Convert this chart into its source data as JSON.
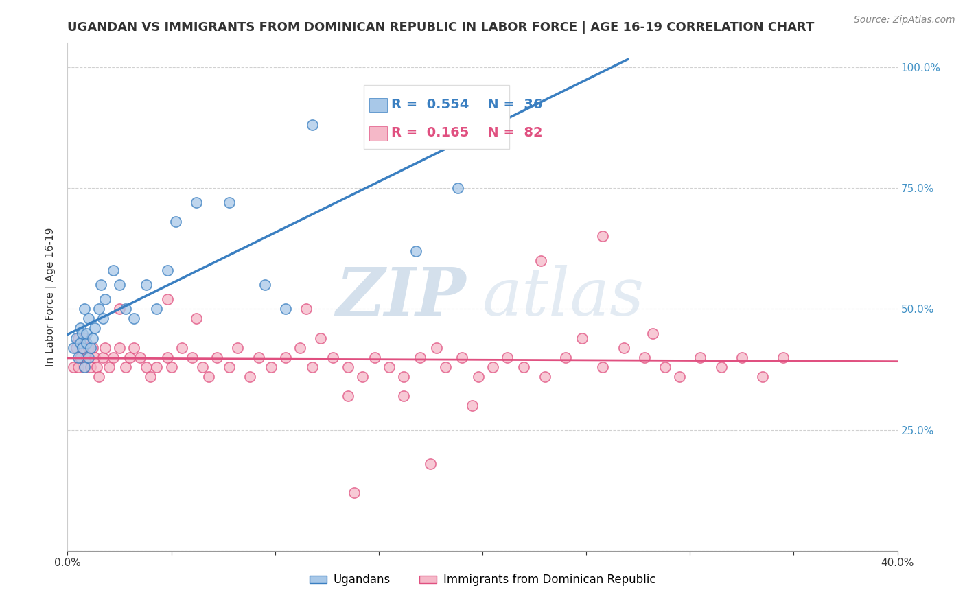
{
  "title": "UGANDAN VS IMMIGRANTS FROM DOMINICAN REPUBLIC IN LABOR FORCE | AGE 16-19 CORRELATION CHART",
  "source_text": "Source: ZipAtlas.com",
  "ylabel": "In Labor Force | Age 16-19",
  "xlim": [
    0.0,
    0.4
  ],
  "ylim": [
    0.0,
    1.05
  ],
  "blue_color": "#a8c8e8",
  "blue_line_color": "#3a7fc1",
  "pink_color": "#f5b8c8",
  "pink_line_color": "#e05080",
  "legend_R_blue": "0.554",
  "legend_N_blue": "36",
  "legend_R_pink": "0.165",
  "legend_N_pink": "82",
  "legend_label_blue": "Ugandans",
  "legend_label_pink": "Immigrants from Dominican Republic",
  "watermark_zip": "ZIP",
  "watermark_atlas": "atlas",
  "bg_color": "#ffffff",
  "grid_color": "#cccccc",
  "title_fontsize": 13,
  "axis_label_fontsize": 11,
  "tick_fontsize": 11,
  "legend_fontsize": 14,
  "blue_x": [
    0.003,
    0.004,
    0.005,
    0.006,
    0.006,
    0.007,
    0.007,
    0.008,
    0.008,
    0.009,
    0.009,
    0.01,
    0.01,
    0.011,
    0.012,
    0.013,
    0.015,
    0.016,
    0.017,
    0.018,
    0.022,
    0.025,
    0.028,
    0.032,
    0.038,
    0.043,
    0.048,
    0.052,
    0.062,
    0.078,
    0.095,
    0.105,
    0.118,
    0.148,
    0.168,
    0.188
  ],
  "blue_y": [
    0.42,
    0.44,
    0.4,
    0.43,
    0.46,
    0.42,
    0.45,
    0.38,
    0.5,
    0.43,
    0.45,
    0.4,
    0.48,
    0.42,
    0.44,
    0.46,
    0.5,
    0.55,
    0.48,
    0.52,
    0.58,
    0.55,
    0.5,
    0.48,
    0.55,
    0.5,
    0.58,
    0.68,
    0.72,
    0.72,
    0.55,
    0.5,
    0.88,
    0.95,
    0.62,
    0.75
  ],
  "pink_x": [
    0.003,
    0.004,
    0.005,
    0.005,
    0.006,
    0.007,
    0.008,
    0.008,
    0.009,
    0.01,
    0.011,
    0.012,
    0.013,
    0.014,
    0.015,
    0.017,
    0.018,
    0.02,
    0.022,
    0.025,
    0.028,
    0.03,
    0.032,
    0.035,
    0.038,
    0.04,
    0.043,
    0.048,
    0.05,
    0.055,
    0.06,
    0.065,
    0.068,
    0.072,
    0.078,
    0.082,
    0.088,
    0.092,
    0.098,
    0.105,
    0.112,
    0.118,
    0.122,
    0.128,
    0.135,
    0.142,
    0.148,
    0.155,
    0.162,
    0.17,
    0.178,
    0.182,
    0.19,
    0.198,
    0.205,
    0.212,
    0.22,
    0.23,
    0.24,
    0.248,
    0.258,
    0.268,
    0.278,
    0.288,
    0.295,
    0.305,
    0.315,
    0.325,
    0.335,
    0.345,
    0.025,
    0.048,
    0.062,
    0.115,
    0.135,
    0.162,
    0.195,
    0.228,
    0.258,
    0.282,
    0.138,
    0.175
  ],
  "pink_y": [
    0.38,
    0.42,
    0.38,
    0.44,
    0.4,
    0.42,
    0.38,
    0.44,
    0.4,
    0.42,
    0.38,
    0.42,
    0.4,
    0.38,
    0.36,
    0.4,
    0.42,
    0.38,
    0.4,
    0.42,
    0.38,
    0.4,
    0.42,
    0.4,
    0.38,
    0.36,
    0.38,
    0.4,
    0.38,
    0.42,
    0.4,
    0.38,
    0.36,
    0.4,
    0.38,
    0.42,
    0.36,
    0.4,
    0.38,
    0.4,
    0.42,
    0.38,
    0.44,
    0.4,
    0.38,
    0.36,
    0.4,
    0.38,
    0.36,
    0.4,
    0.42,
    0.38,
    0.4,
    0.36,
    0.38,
    0.4,
    0.38,
    0.36,
    0.4,
    0.44,
    0.38,
    0.42,
    0.4,
    0.38,
    0.36,
    0.4,
    0.38,
    0.4,
    0.36,
    0.4,
    0.5,
    0.52,
    0.48,
    0.5,
    0.32,
    0.32,
    0.3,
    0.6,
    0.65,
    0.45,
    0.12,
    0.18
  ]
}
